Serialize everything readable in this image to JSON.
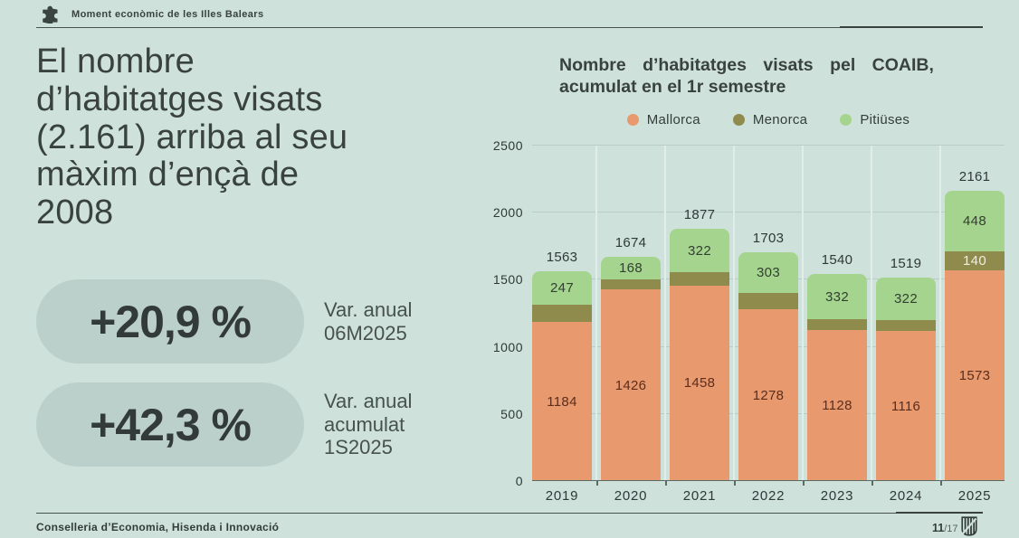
{
  "header": {
    "brand": "Moment econòmic de les Illes Balears"
  },
  "headline": {
    "title": "El nombre\nd’habitatges visats\n(2.161) arriba al seu\nmàxim d’ençà de\n2008"
  },
  "stats": [
    {
      "value": "+20,9 %",
      "label": "Var. anual\n06M2025"
    },
    {
      "value": "+42,3 %",
      "label": "Var. anual\nacumulat\n1S2025"
    }
  ],
  "chart": {
    "title_line1": "Nombre d’habitatges visats pel COAIB,",
    "title_line2": "acumulat en el 1r semestre"
  },
  "chart_data": {
    "type": "bar",
    "stacked": true,
    "title": "Nombre d’habitatges visats pel COAIB, acumulat en el 1r semestre",
    "categories": [
      "2019",
      "2020",
      "2021",
      "2022",
      "2023",
      "2024",
      "2025"
    ],
    "series": [
      {
        "name": "Mallorca",
        "color": "#e89a6e",
        "label_color": "#5c2d1b",
        "values": [
          1184,
          1426,
          1458,
          1278,
          1128,
          1116,
          1573
        ],
        "labels": [
          1184,
          1426,
          1458,
          1278,
          1128,
          1116,
          1573
        ]
      },
      {
        "name": "Menorca",
        "color": "#8e8b4c",
        "label_color": "#f1eedb",
        "values": [
          132,
          80,
          97,
          122,
          80,
          81,
          140
        ],
        "labels": [
          null,
          null,
          null,
          null,
          null,
          null,
          140
        ]
      },
      {
        "name": "Pitiüses",
        "color": "#a5d48f",
        "label_color": "#33402f",
        "values": [
          247,
          168,
          322,
          303,
          332,
          322,
          448
        ],
        "labels": [
          247,
          168,
          322,
          303,
          332,
          322,
          448
        ]
      }
    ],
    "totals": [
      1563,
      1674,
      1877,
      1703,
      1540,
      1519,
      2161
    ],
    "y_ticks": [
      0,
      500,
      1000,
      1500,
      2000,
      2500
    ],
    "ylim": [
      0,
      2500
    ],
    "legend_position": "top",
    "grid": true
  },
  "footer": {
    "left": "Conselleria d’Economia, Hisenda i Innovació",
    "page": "11",
    "page_total": "/17"
  },
  "colors": {
    "background": "#cee1db",
    "pill": "#bcd0cb",
    "text_dark": "#39423f",
    "mallorca": "#e89a6e",
    "menorca": "#8e8b4c",
    "pitiuses": "#a5d48f",
    "gridline": "#b7cdc7",
    "baseline": "#5b6a65"
  }
}
